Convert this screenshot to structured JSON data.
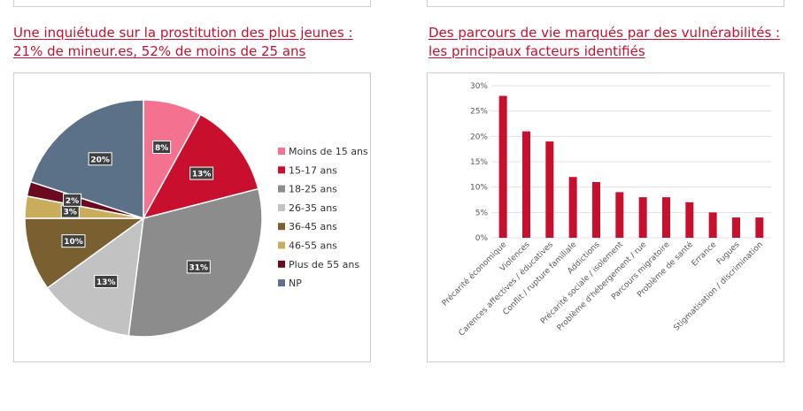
{
  "left": {
    "title_line1": "Une inquiétude sur la prostitution des plus jeunes :",
    "title_line2": "21% de mineur.es, 52% de moins de 25 ans"
  },
  "right": {
    "title_line1": "Des parcours de vie marqués par des vulnérabilités :",
    "title_line2": "les principaux facteurs identifiés"
  },
  "chart_data": [
    {
      "type": "pie",
      "categories": [
        "Moins de 15 ans",
        "15-17 ans",
        "18-25 ans",
        "26-35 ans",
        "36-45 ans",
        "46-55 ans",
        "Plus de 55 ans",
        "NP"
      ],
      "values": [
        8,
        13,
        31,
        13,
        10,
        3,
        2,
        20
      ],
      "data_labels": [
        "8%",
        "13%",
        "31%",
        "13%",
        "10%",
        "3%",
        "2%",
        "20%"
      ],
      "colors": [
        "#f4718f",
        "#c8102e",
        "#8c8c8c",
        "#c2c2c2",
        "#7a6030",
        "#c9ad5c",
        "#6b0a1e",
        "#5b7188"
      ],
      "legend_position": "right"
    },
    {
      "type": "bar",
      "categories": [
        "Précarité économique",
        "Violences",
        "Carences affectives / éducatives",
        "Conflit / rupture familiale",
        "Addictions",
        "Précarité sociale / isolement",
        "Problème d'hébergement / rue",
        "Parcours migratoire",
        "Problème de santé",
        "Errance",
        "Fugues",
        "Stigmatisation / discrimination"
      ],
      "values": [
        0.28,
        0.21,
        0.19,
        0.12,
        0.11,
        0.09,
        0.08,
        0.08,
        0.07,
        0.05,
        0.04,
        0.04
      ],
      "yticks": [
        "0%",
        "5%",
        "10%",
        "15%",
        "20%",
        "25%",
        "30%"
      ],
      "ylim": [
        0,
        0.3
      ],
      "color": "#c8102e",
      "grid": true
    }
  ]
}
